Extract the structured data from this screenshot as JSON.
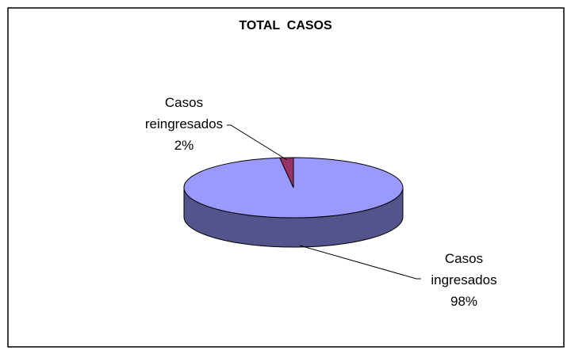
{
  "chart_data": {
    "type": "pie",
    "title": "TOTAL  CASOS",
    "categories": [
      "Casos reingresados",
      "Casos ingresados"
    ],
    "values": [
      2,
      98
    ],
    "value_labels": [
      "2%",
      "98%"
    ],
    "colors": [
      "#993366",
      "#9999ff"
    ]
  }
}
